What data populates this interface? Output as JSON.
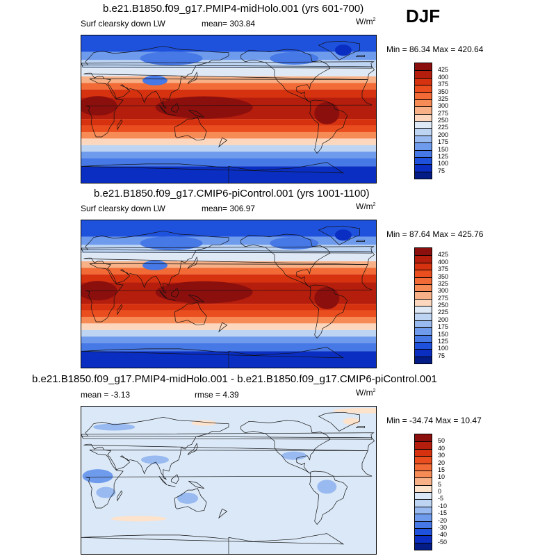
{
  "season": "DJF",
  "land_polygons": [
    [
      [
        -165,
        66
      ],
      [
        -155,
        72
      ],
      [
        -130,
        70
      ],
      [
        -110,
        73
      ],
      [
        -95,
        72
      ],
      [
        -80,
        66
      ],
      [
        -78,
        58
      ],
      [
        -68,
        59
      ],
      [
        -60,
        55
      ],
      [
        -56,
        50
      ],
      [
        -65,
        45
      ],
      [
        -70,
        42
      ],
      [
        -75,
        38
      ],
      [
        -76,
        35
      ],
      [
        -80,
        31
      ],
      [
        -81,
        25
      ],
      [
        -84,
        30
      ],
      [
        -90,
        29
      ],
      [
        -97,
        27
      ],
      [
        -97,
        22
      ],
      [
        -91,
        19
      ],
      [
        -87,
        21
      ],
      [
        -88,
        16
      ],
      [
        -84,
        11
      ],
      [
        -80,
        8
      ],
      [
        -86,
        12
      ],
      [
        -95,
        16
      ],
      [
        -105,
        20
      ],
      [
        -110,
        23
      ],
      [
        -115,
        30
      ],
      [
        -120,
        34
      ],
      [
        -124,
        40
      ],
      [
        -124,
        48
      ],
      [
        -135,
        57
      ],
      [
        -150,
        60
      ],
      [
        -160,
        58
      ],
      [
        -165,
        62
      ]
    ],
    [
      [
        -80,
        10
      ],
      [
        -75,
        11
      ],
      [
        -62,
        10
      ],
      [
        -52,
        5
      ],
      [
        -50,
        0
      ],
      [
        -40,
        -3
      ],
      [
        -35,
        -8
      ],
      [
        -38,
        -15
      ],
      [
        -40,
        -22
      ],
      [
        -48,
        -26
      ],
      [
        -53,
        -34
      ],
      [
        -58,
        -38
      ],
      [
        -65,
        -42
      ],
      [
        -67,
        -48
      ],
      [
        -72,
        -54
      ],
      [
        -75,
        -50
      ],
      [
        -73,
        -40
      ],
      [
        -71,
        -30
      ],
      [
        -70,
        -18
      ],
      [
        -76,
        -13
      ],
      [
        -81,
        -5
      ],
      [
        -80,
        0
      ]
    ],
    [
      [
        -45,
        60
      ],
      [
        -30,
        68
      ],
      [
        -20,
        72
      ],
      [
        -20,
        80
      ],
      [
        -40,
        83
      ],
      [
        -60,
        82
      ],
      [
        -70,
        78
      ],
      [
        -55,
        70
      ]
    ],
    [
      [
        -10,
        36
      ],
      [
        -17,
        21
      ],
      [
        -17,
        14
      ],
      [
        -12,
        8
      ],
      [
        -5,
        5
      ],
      [
        5,
        4
      ],
      [
        10,
        3
      ],
      [
        9,
        -2
      ],
      [
        13,
        -10
      ],
      [
        12,
        -17
      ],
      [
        15,
        -27
      ],
      [
        18,
        -34
      ],
      [
        25,
        -34
      ],
      [
        32,
        -29
      ],
      [
        35,
        -22
      ],
      [
        40,
        -15
      ],
      [
        40,
        -5
      ],
      [
        42,
        0
      ],
      [
        51,
        11
      ],
      [
        43,
        12
      ],
      [
        38,
        18
      ],
      [
        33,
        28
      ],
      [
        30,
        31
      ],
      [
        20,
        32
      ],
      [
        10,
        37
      ]
    ],
    [
      [
        -10,
        36
      ],
      [
        -9,
        43
      ],
      [
        -2,
        48
      ],
      [
        -5,
        52
      ],
      [
        0,
        54
      ],
      [
        8,
        54
      ],
      [
        5,
        58
      ],
      [
        10,
        63
      ],
      [
        15,
        69
      ],
      [
        25,
        71
      ],
      [
        40,
        68
      ],
      [
        60,
        70
      ],
      [
        80,
        73
      ],
      [
        100,
        77
      ],
      [
        120,
        73
      ],
      [
        140,
        72
      ],
      [
        160,
        70
      ],
      [
        180,
        69
      ],
      [
        180,
        65
      ],
      [
        170,
        60
      ],
      [
        160,
        60
      ],
      [
        155,
        57
      ],
      [
        140,
        53
      ],
      [
        135,
        44
      ],
      [
        130,
        42
      ],
      [
        127,
        38
      ],
      [
        122,
        40
      ],
      [
        121,
        32
      ],
      [
        119,
        25
      ],
      [
        110,
        20
      ],
      [
        107,
        11
      ],
      [
        100,
        13
      ],
      [
        100,
        3
      ],
      [
        104,
        1
      ],
      [
        98,
        8
      ],
      [
        95,
        16
      ],
      [
        91,
        22
      ],
      [
        86,
        20
      ],
      [
        80,
        15
      ],
      [
        77,
        8
      ],
      [
        73,
        18
      ],
      [
        68,
        23
      ],
      [
        60,
        25
      ],
      [
        57,
        24
      ],
      [
        52,
        28
      ],
      [
        50,
        30
      ],
      [
        48,
        29
      ],
      [
        56,
        26
      ],
      [
        59,
        22
      ],
      [
        52,
        16
      ],
      [
        43,
        13
      ],
      [
        40,
        20
      ],
      [
        35,
        28
      ],
      [
        32,
        31
      ],
      [
        36,
        36
      ],
      [
        28,
        37
      ],
      [
        26,
        40
      ],
      [
        20,
        40
      ],
      [
        16,
        38
      ],
      [
        12,
        44
      ],
      [
        8,
        44
      ],
      [
        3,
        43
      ]
    ],
    [
      [
        114,
        -22
      ],
      [
        122,
        -18
      ],
      [
        130,
        -12
      ],
      [
        136,
        -12
      ],
      [
        142,
        -10
      ],
      [
        146,
        -19
      ],
      [
        153,
        -27
      ],
      [
        150,
        -37
      ],
      [
        141,
        -38
      ],
      [
        135,
        -35
      ],
      [
        130,
        -32
      ],
      [
        117,
        -35
      ],
      [
        115,
        -33
      ]
    ],
    [
      [
        -180,
        -70
      ],
      [
        -150,
        -75
      ],
      [
        -100,
        -72
      ],
      [
        -60,
        -65
      ],
      [
        -40,
        -78
      ],
      [
        0,
        -70
      ],
      [
        40,
        -68
      ],
      [
        80,
        -67
      ],
      [
        120,
        -67
      ],
      [
        160,
        -70
      ],
      [
        180,
        -72
      ],
      [
        180,
        -90
      ],
      [
        -180,
        -90
      ]
    ],
    [
      [
        95,
        5
      ],
      [
        105,
        -6
      ],
      [
        100,
        -2
      ]
    ],
    [
      [
        110,
        -7
      ],
      [
        115,
        -8
      ],
      [
        106,
        -6
      ]
    ],
    [
      [
        110,
        1
      ],
      [
        117,
        7
      ],
      [
        119,
        1
      ],
      [
        116,
        -4
      ],
      [
        110,
        -2
      ]
    ],
    [
      [
        131,
        -1
      ],
      [
        141,
        -3
      ],
      [
        150,
        -10
      ],
      [
        140,
        -8
      ]
    ],
    [
      [
        130,
        31
      ],
      [
        135,
        34
      ],
      [
        140,
        36
      ],
      [
        142,
        41
      ],
      [
        141,
        45
      ],
      [
        137,
        37
      ],
      [
        132,
        34
      ]
    ],
    [
      [
        -5,
        50
      ],
      [
        2,
        51
      ],
      [
        0,
        56
      ],
      [
        -3,
        58
      ],
      [
        -6,
        56
      ]
    ],
    [
      [
        172,
        -35
      ],
      [
        178,
        -38
      ],
      [
        174,
        -41
      ],
      [
        168,
        -46
      ]
    ],
    [
      [
        44,
        -25
      ],
      [
        50,
        -15
      ],
      [
        49,
        -13
      ],
      [
        44,
        -20
      ]
    ],
    [
      [
        -24,
        64
      ],
      [
        -14,
        64
      ],
      [
        -14,
        66
      ],
      [
        -22,
        66
      ]
    ]
  ],
  "panels": [
    {
      "title": "b.e21.B1850.f09_g17.PMIP4-midHolo.001 (yrs 601-700)",
      "left_label": "Surf clearsky down LW",
      "mean_text": "mean= 303.84",
      "units_main": "W/m",
      "units_sup": "2",
      "minmax": "Min =  86.34 Max = 420.64",
      "kind": "abs",
      "colorbar": {
        "labels": [
          "425",
          "400",
          "375",
          "350",
          "325",
          "300",
          "275",
          "250",
          "225",
          "200",
          "175",
          "150",
          "125",
          "100",
          "75"
        ],
        "colors": [
          "#8b0f0d",
          "#b51d0d",
          "#d6320f",
          "#ea4d1e",
          "#f26b36",
          "#f68b56",
          "#f8b187",
          "#fcd7bd",
          "#dfe9f6",
          "#bdd4f3",
          "#98baf0",
          "#6f9bec",
          "#4678e6",
          "#1f52dc",
          "#0a2ec2",
          "#031c86"
        ]
      }
    },
    {
      "title": "b.e21.B1850.f09_g17.CMIP6-piControl.001 (yrs 1001-1100)",
      "left_label": "Surf clearsky down LW",
      "mean_text": "mean= 306.97",
      "units_main": "W/m",
      "units_sup": "2",
      "minmax": "Min =  87.64 Max = 425.76",
      "kind": "abs",
      "colorbar": {
        "labels": [
          "425",
          "400",
          "375",
          "350",
          "325",
          "300",
          "275",
          "250",
          "225",
          "200",
          "175",
          "150",
          "125",
          "100",
          "75"
        ],
        "colors": [
          "#8b0f0d",
          "#b51d0d",
          "#d6320f",
          "#ea4d1e",
          "#f26b36",
          "#f68b56",
          "#f8b187",
          "#fcd7bd",
          "#dfe9f6",
          "#bdd4f3",
          "#98baf0",
          "#6f9bec",
          "#4678e6",
          "#1f52dc",
          "#0a2ec2",
          "#031c86"
        ]
      }
    },
    {
      "title": "b.e21.B1850.f09_g17.PMIP4-midHolo.001 - b.e21.B1850.f09_g17.CMIP6-piControl.001",
      "left_label": "mean =  -3.13",
      "mean_text": "rmse =   4.39",
      "units_main": "W/m",
      "units_sup": "2",
      "minmax": "Min = -34.74 Max =  10.47",
      "kind": "diff",
      "colorbar": {
        "labels": [
          "50",
          "40",
          "30",
          "20",
          "15",
          "10",
          "5",
          "0",
          "-5",
          "-10",
          "-15",
          "-20",
          "-30",
          "-40",
          "-50"
        ],
        "colors": [
          "#8b0f0d",
          "#b51d0d",
          "#d6320f",
          "#ea4d1e",
          "#f26b36",
          "#f68b56",
          "#f8b187",
          "#fde2cc",
          "#dbe8f7",
          "#bdd4f3",
          "#98baf0",
          "#6f9bec",
          "#4678e6",
          "#1f52dc",
          "#0a2ec2",
          "#031c86"
        ]
      }
    }
  ]
}
